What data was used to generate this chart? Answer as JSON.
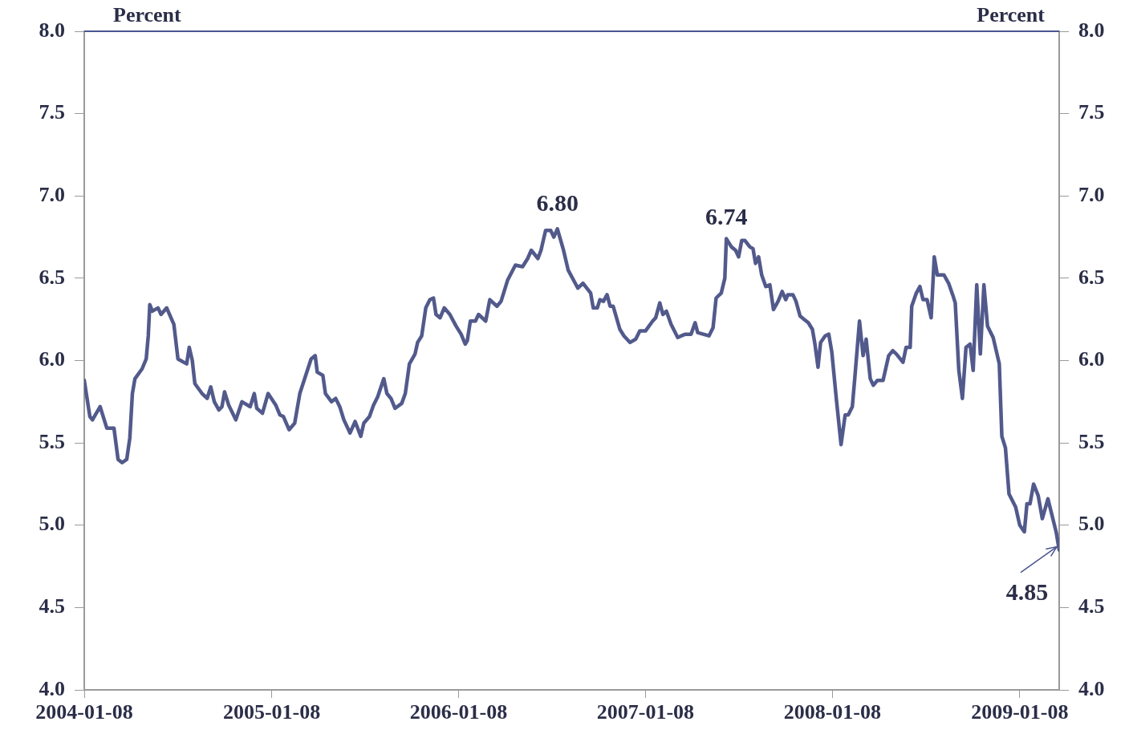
{
  "chart_data": {
    "type": "line",
    "ylabel": "Percent",
    "y2label": "Percent",
    "x": [
      "2004-01-08",
      "2004-01-19",
      "2004-01-24",
      "2004-02-08",
      "2004-02-21",
      "2004-03-06",
      "2004-03-14",
      "2004-03-22",
      "2004-03-31",
      "2004-04-06",
      "2004-04-11",
      "2004-04-16",
      "2004-04-30",
      "2004-05-08",
      "2004-05-12",
      "2004-05-15",
      "2004-05-20",
      "2004-05-31",
      "2004-06-06",
      "2004-06-17",
      "2004-07-01",
      "2004-07-09",
      "2004-07-26",
      "2004-07-31",
      "2004-08-06",
      "2004-08-11",
      "2004-08-25",
      "2004-09-04",
      "2004-09-11",
      "2004-09-18",
      "2004-09-27",
      "2004-10-03",
      "2004-10-08",
      "2004-10-16",
      "2004-10-30",
      "2004-11-11",
      "2004-11-27",
      "2004-12-05",
      "2004-12-10",
      "2004-12-21",
      "2005-01-01",
      "2005-01-16",
      "2005-01-24",
      "2005-01-31",
      "2005-02-11",
      "2005-02-22",
      "2005-03-04",
      "2005-03-26",
      "2005-04-03",
      "2005-04-07",
      "2005-04-18",
      "2005-04-23",
      "2005-05-05",
      "2005-05-13",
      "2005-05-21",
      "2005-05-29",
      "2005-06-10",
      "2005-06-20",
      "2005-07-01",
      "2005-07-07",
      "2005-07-18",
      "2005-07-26",
      "2005-08-03",
      "2005-08-15",
      "2005-08-21",
      "2005-08-29",
      "2005-09-06",
      "2005-09-19",
      "2005-09-26",
      "2005-10-04",
      "2005-10-15",
      "2005-10-20",
      "2005-10-28",
      "2005-11-05",
      "2005-11-13",
      "2005-11-20",
      "2005-11-25",
      "2005-12-03",
      "2005-12-11",
      "2005-12-22",
      "2006-01-03",
      "2006-01-13",
      "2006-01-21",
      "2006-01-25",
      "2006-01-31",
      "2006-02-10",
      "2006-02-16",
      "2006-03-02",
      "2006-03-10",
      "2006-03-24",
      "2006-04-01",
      "2006-04-14",
      "2006-04-29",
      "2006-05-13",
      "2006-05-23",
      "2006-05-30",
      "2006-06-12",
      "2006-06-18",
      "2006-06-27",
      "2006-07-07",
      "2006-07-13",
      "2006-07-20",
      "2006-08-01",
      "2006-08-10",
      "2006-08-29",
      "2006-09-08",
      "2006-09-23",
      "2006-09-28",
      "2006-10-06",
      "2006-10-11",
      "2006-10-18",
      "2006-10-25",
      "2006-10-31",
      "2006-11-06",
      "2006-11-19",
      "2006-11-27",
      "2006-12-09",
      "2006-12-20",
      "2006-12-28",
      "2007-01-08",
      "2007-01-22",
      "2007-01-28",
      "2007-02-05",
      "2007-02-11",
      "2007-02-18",
      "2007-02-27",
      "2007-03-12",
      "2007-03-19",
      "2007-03-27",
      "2007-04-07",
      "2007-04-15",
      "2007-04-20",
      "2007-05-12",
      "2007-05-20",
      "2007-05-26",
      "2007-06-05",
      "2007-06-12",
      "2007-06-15",
      "2007-06-25",
      "2007-07-03",
      "2007-07-09",
      "2007-07-15",
      "2007-07-21",
      "2007-07-31",
      "2007-08-06",
      "2007-08-11",
      "2007-08-17",
      "2007-08-23",
      "2007-08-31",
      "2007-09-08",
      "2007-09-15",
      "2007-09-24",
      "2007-10-02",
      "2007-10-09",
      "2007-10-13",
      "2007-10-23",
      "2007-10-29",
      "2007-11-06",
      "2007-11-14",
      "2007-11-22",
      "2007-11-30",
      "2007-12-05",
      "2007-12-11",
      "2007-12-16",
      "2007-12-25",
      "2008-01-01",
      "2008-01-07",
      "2008-01-16",
      "2008-01-25",
      "2008-02-02",
      "2008-02-08",
      "2008-02-16",
      "2008-02-21",
      "2008-03-01",
      "2008-03-08",
      "2008-03-14",
      "2008-03-22",
      "2008-03-28",
      "2008-04-05",
      "2008-04-16",
      "2008-04-27",
      "2008-05-05",
      "2008-05-12",
      "2008-05-25",
      "2008-05-31",
      "2008-06-08",
      "2008-06-11",
      "2008-06-20",
      "2008-06-27",
      "2008-07-03",
      "2008-07-11",
      "2008-07-19",
      "2008-07-25",
      "2008-07-31",
      "2008-08-13",
      "2008-08-22",
      "2008-08-30",
      "2008-09-04",
      "2008-09-11",
      "2008-09-18",
      "2008-09-25",
      "2008-10-03",
      "2008-10-09",
      "2008-10-16",
      "2008-10-23",
      "2008-10-30",
      "2008-11-06",
      "2008-11-17",
      "2008-11-29",
      "2008-12-04",
      "2008-12-11",
      "2008-12-18",
      "2008-12-31",
      "2009-01-08",
      "2009-01-17",
      "2009-01-22",
      "2009-01-28",
      "2009-02-04",
      "2009-02-13",
      "2009-02-21",
      "2009-03-04",
      "2009-03-16",
      "2009-03-20",
      "2009-03-26"
    ],
    "series": [
      {
        "color": "#525a8c",
        "values": [
          5.88,
          5.66,
          5.64,
          5.72,
          5.59,
          5.59,
          5.4,
          5.38,
          5.4,
          5.53,
          5.8,
          5.89,
          5.95,
          6.01,
          6.15,
          6.34,
          6.3,
          6.32,
          6.28,
          6.32,
          6.22,
          6.01,
          5.98,
          6.08,
          6.0,
          5.86,
          5.8,
          5.77,
          5.84,
          5.75,
          5.7,
          5.72,
          5.81,
          5.73,
          5.64,
          5.75,
          5.72,
          5.8,
          5.71,
          5.68,
          5.8,
          5.73,
          5.67,
          5.66,
          5.58,
          5.62,
          5.8,
          6.01,
          6.03,
          5.93,
          5.91,
          5.8,
          5.75,
          5.77,
          5.72,
          5.64,
          5.56,
          5.63,
          5.54,
          5.62,
          5.66,
          5.73,
          5.78,
          5.89,
          5.8,
          5.77,
          5.71,
          5.74,
          5.8,
          5.98,
          6.04,
          6.11,
          6.15,
          6.32,
          6.37,
          6.38,
          6.28,
          6.26,
          6.32,
          6.28,
          6.21,
          6.16,
          6.1,
          6.12,
          6.24,
          6.24,
          6.28,
          6.24,
          6.37,
          6.33,
          6.36,
          6.49,
          6.58,
          6.57,
          6.62,
          6.67,
          6.62,
          6.67,
          6.79,
          6.79,
          6.75,
          6.8,
          6.67,
          6.55,
          6.44,
          6.47,
          6.41,
          6.32,
          6.32,
          6.37,
          6.36,
          6.4,
          6.33,
          6.33,
          6.19,
          6.15,
          6.11,
          6.13,
          6.18,
          6.18,
          6.24,
          6.26,
          6.35,
          6.28,
          6.3,
          6.22,
          6.14,
          6.15,
          6.16,
          6.16,
          6.23,
          6.17,
          6.15,
          6.2,
          6.38,
          6.41,
          6.5,
          6.74,
          6.69,
          6.67,
          6.63,
          6.73,
          6.73,
          6.69,
          6.68,
          6.59,
          6.63,
          6.52,
          6.45,
          6.46,
          6.31,
          6.36,
          6.42,
          6.37,
          6.4,
          6.4,
          6.36,
          6.27,
          6.25,
          6.23,
          6.19,
          6.1,
          5.96,
          6.11,
          6.15,
          6.16,
          6.05,
          5.76,
          5.49,
          5.67,
          5.67,
          5.72,
          5.9,
          6.24,
          6.03,
          6.13,
          5.89,
          5.85,
          5.88,
          5.88,
          6.03,
          6.06,
          6.04,
          5.99,
          6.08,
          6.08,
          6.33,
          6.41,
          6.45,
          6.37,
          6.37,
          6.26,
          6.63,
          6.52,
          6.52,
          6.47,
          6.4,
          6.35,
          5.94,
          5.77,
          6.08,
          6.1,
          5.94,
          6.46,
          6.04,
          6.46,
          6.21,
          6.14,
          5.98,
          5.54,
          5.47,
          5.19,
          5.11,
          5.0,
          4.96,
          5.13,
          5.13,
          5.25,
          5.18,
          5.04,
          5.16,
          5.01,
          4.96,
          4.85
        ]
      }
    ],
    "xlim": [
      "2004-01-08",
      "2009-03-26"
    ],
    "xticks": [
      "2004-01-08",
      "2005-01-08",
      "2006-01-08",
      "2007-01-08",
      "2008-01-08",
      "2009-01-08"
    ],
    "ylim": [
      4,
      8
    ],
    "yticks": [
      {
        "value": 4,
        "label": "4.0"
      },
      {
        "value": 4.5,
        "label": "4.5"
      },
      {
        "value": 5,
        "label": "5.0"
      },
      {
        "value": 5.5,
        "label": "5.5"
      },
      {
        "value": 6,
        "label": "6.0"
      },
      {
        "value": 6.5,
        "label": "6.5"
      },
      {
        "value": 7,
        "label": "7.0"
      },
      {
        "value": 7.5,
        "label": "7.5"
      },
      {
        "value": 8,
        "label": "8.0"
      }
    ],
    "y2lim": [
      4,
      8
    ],
    "y2ticks": [
      {
        "value": 4,
        "label": "4.0"
      },
      {
        "value": 4.5,
        "label": "4.5"
      },
      {
        "value": 5,
        "label": "5.0"
      },
      {
        "value": 5.5,
        "label": "5.5"
      },
      {
        "value": 6,
        "label": "6.0"
      },
      {
        "value": 6.5,
        "label": "6.5"
      },
      {
        "value": 7,
        "label": "7.0"
      },
      {
        "value": 7.5,
        "label": "7.5"
      },
      {
        "value": 8,
        "label": "8.0"
      }
    ],
    "annotations": [
      {
        "text": "6.80",
        "x": "2006-07-20",
        "y": 6.8
      },
      {
        "text": "6.74",
        "x": "2007-06-15",
        "y": 6.74
      },
      {
        "text": "4.85",
        "x": "2009-03-26",
        "y": 4.85
      }
    ],
    "grid": false,
    "legend": false,
    "marker": "none",
    "line_style": "solid"
  }
}
